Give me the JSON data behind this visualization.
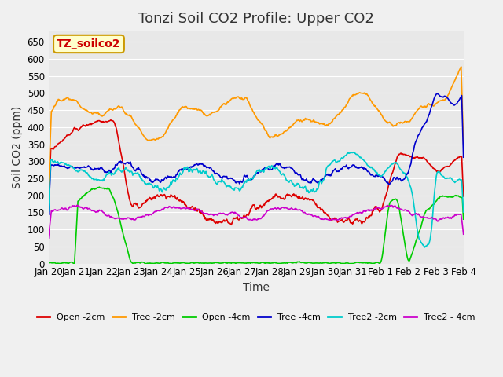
{
  "title": "Tonzi Soil CO2 Profile: Upper CO2",
  "xlabel": "Time",
  "ylabel": "Soil CO2 (ppm)",
  "ylim": [
    0,
    680
  ],
  "yticks": [
    0,
    50,
    100,
    150,
    200,
    250,
    300,
    350,
    400,
    450,
    500,
    550,
    600,
    650
  ],
  "xtick_labels": [
    "Jan 20",
    "Jan 21",
    "Jan 22",
    "Jan 23",
    "Jan 24",
    "Jan 25",
    "Jan 26",
    "Jan 27",
    "Jan 28",
    "Jan 29",
    "Jan 30",
    "Jan 31",
    "Feb 1",
    "Feb 2",
    "Feb 3",
    "Feb 4"
  ],
  "legend_label": "TZ_soilco2",
  "legend_box_color": "#ffffcc",
  "legend_text_color": "#cc0000",
  "series_labels": [
    "Open -2cm",
    "Tree -2cm",
    "Open -4cm",
    "Tree -4cm",
    "Tree2 -2cm",
    "Tree2 - 4cm"
  ],
  "series_colors": [
    "#dd0000",
    "#ff9900",
    "#00cc00",
    "#0000cc",
    "#00cccc",
    "#cc00cc"
  ],
  "bg_color": "#e8e8e8",
  "grid_color": "#ffffff",
  "title_fontsize": 13,
  "axis_fontsize": 10,
  "tick_fontsize": 8.5
}
